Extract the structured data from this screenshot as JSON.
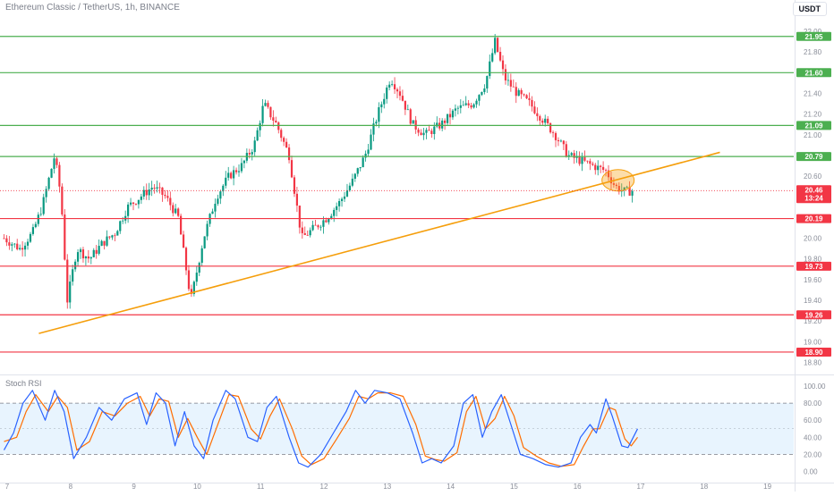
{
  "header": {
    "symbol_title": "Ethereum Classic / TetherUS, 1h, BINANCE",
    "currency_button": "USDT"
  },
  "indicator": {
    "title": "Stoch RSI",
    "ticks": [
      "100.00",
      "80.00",
      "60.00",
      "40.00",
      "20.00",
      "0.00"
    ]
  },
  "chart_data": {
    "type": "candlestick",
    "price_axis": {
      "ticks": [
        "22.00",
        "21.80",
        "21.60",
        "21.40",
        "21.20",
        "21.00",
        "20.80",
        "20.60",
        "20.40",
        "20.20",
        "20.00",
        "19.80",
        "19.60",
        "19.40",
        "19.20",
        "19.00",
        "18.80"
      ],
      "range": [
        18.77,
        22.03
      ]
    },
    "time_axis": {
      "ticks": [
        "7",
        "8",
        "9",
        "10",
        "11",
        "12",
        "13",
        "14",
        "15",
        "16",
        "17",
        "18",
        "19"
      ]
    },
    "support_resistance_levels": {
      "resistance": [
        21.95,
        21.6,
        21.09,
        20.79
      ],
      "support": [
        20.19,
        19.73,
        19.26,
        18.9
      ],
      "resistance_labels": [
        "21.95",
        "21.60",
        "21.09",
        "20.79"
      ],
      "support_labels": [
        "20.19",
        "19.73",
        "19.26",
        "18.90"
      ],
      "resistance_color": "#4caf50",
      "support_color": "#f23645"
    },
    "last_price": {
      "label": "20.46",
      "value": 20.46,
      "countdown": "13:24",
      "color": "#f23645"
    },
    "trendline": {
      "color": "#f59e0b",
      "points": [
        {
          "x": "7.5",
          "price": 19.08
        },
        {
          "x": "18.25",
          "price": 20.83
        }
      ]
    },
    "highlight_ellipse": {
      "x": "16.6",
      "price": 20.56,
      "color": "#f59e0b"
    },
    "candles_close_path": [
      {
        "t": 6.95,
        "p": 20.0
      },
      {
        "t": 7.2,
        "p": 19.9
      },
      {
        "t": 7.4,
        "p": 20.05
      },
      {
        "t": 7.55,
        "p": 20.3
      },
      {
        "t": 7.75,
        "p": 20.8
      },
      {
        "t": 7.85,
        "p": 20.4
      },
      {
        "t": 7.95,
        "p": 19.4
      },
      {
        "t": 8.1,
        "p": 19.9
      },
      {
        "t": 8.3,
        "p": 19.8
      },
      {
        "t": 8.5,
        "p": 19.95
      },
      {
        "t": 8.7,
        "p": 20.05
      },
      {
        "t": 8.9,
        "p": 20.3
      },
      {
        "t": 9.1,
        "p": 20.4
      },
      {
        "t": 9.3,
        "p": 20.5
      },
      {
        "t": 9.5,
        "p": 20.4
      },
      {
        "t": 9.7,
        "p": 20.2
      },
      {
        "t": 9.9,
        "p": 19.4
      },
      {
        "t": 10.1,
        "p": 20.0
      },
      {
        "t": 10.3,
        "p": 20.4
      },
      {
        "t": 10.5,
        "p": 20.6
      },
      {
        "t": 10.7,
        "p": 20.7
      },
      {
        "t": 10.9,
        "p": 20.9
      },
      {
        "t": 11.05,
        "p": 21.3
      },
      {
        "t": 11.25,
        "p": 21.1
      },
      {
        "t": 11.45,
        "p": 20.8
      },
      {
        "t": 11.65,
        "p": 20.0
      },
      {
        "t": 11.85,
        "p": 20.1
      },
      {
        "t": 12.05,
        "p": 20.2
      },
      {
        "t": 12.25,
        "p": 20.35
      },
      {
        "t": 12.45,
        "p": 20.55
      },
      {
        "t": 12.65,
        "p": 20.8
      },
      {
        "t": 12.85,
        "p": 21.2
      },
      {
        "t": 13.05,
        "p": 21.55
      },
      {
        "t": 13.2,
        "p": 21.4
      },
      {
        "t": 13.4,
        "p": 21.1
      },
      {
        "t": 13.6,
        "p": 21.0
      },
      {
        "t": 13.85,
        "p": 21.1
      },
      {
        "t": 14.1,
        "p": 21.25
      },
      {
        "t": 14.35,
        "p": 21.3
      },
      {
        "t": 14.55,
        "p": 21.5
      },
      {
        "t": 14.7,
        "p": 21.9
      },
      {
        "t": 14.85,
        "p": 21.55
      },
      {
        "t": 15.05,
        "p": 21.4
      },
      {
        "t": 15.25,
        "p": 21.3
      },
      {
        "t": 15.45,
        "p": 21.15
      },
      {
        "t": 15.65,
        "p": 21.0
      },
      {
        "t": 15.85,
        "p": 20.8
      },
      {
        "t": 16.05,
        "p": 20.75
      },
      {
        "t": 16.25,
        "p": 20.7
      },
      {
        "t": 16.45,
        "p": 20.65
      },
      {
        "t": 16.6,
        "p": 20.5
      },
      {
        "t": 16.75,
        "p": 20.45
      },
      {
        "t": 16.9,
        "p": 20.46
      }
    ],
    "stoch_rsi": {
      "k_color": "#2962ff",
      "d_color": "#ff6d00",
      "band_upper": 80,
      "band_lower": 20,
      "k_values": [
        {
          "t": 6.95,
          "v": 25
        },
        {
          "t": 7.1,
          "v": 45
        },
        {
          "t": 7.25,
          "v": 80
        },
        {
          "t": 7.4,
          "v": 95
        },
        {
          "t": 7.6,
          "v": 60
        },
        {
          "t": 7.75,
          "v": 95
        },
        {
          "t": 7.9,
          "v": 70
        },
        {
          "t": 8.05,
          "v": 15
        },
        {
          "t": 8.25,
          "v": 40
        },
        {
          "t": 8.45,
          "v": 75
        },
        {
          "t": 8.65,
          "v": 60
        },
        {
          "t": 8.85,
          "v": 85
        },
        {
          "t": 9.05,
          "v": 92
        },
        {
          "t": 9.2,
          "v": 55
        },
        {
          "t": 9.35,
          "v": 92
        },
        {
          "t": 9.5,
          "v": 80
        },
        {
          "t": 9.65,
          "v": 30
        },
        {
          "t": 9.8,
          "v": 70
        },
        {
          "t": 9.95,
          "v": 30
        },
        {
          "t": 10.1,
          "v": 15
        },
        {
          "t": 10.25,
          "v": 60
        },
        {
          "t": 10.45,
          "v": 95
        },
        {
          "t": 10.6,
          "v": 85
        },
        {
          "t": 10.8,
          "v": 40
        },
        {
          "t": 10.95,
          "v": 35
        },
        {
          "t": 11.1,
          "v": 75
        },
        {
          "t": 11.25,
          "v": 88
        },
        {
          "t": 11.45,
          "v": 40
        },
        {
          "t": 11.6,
          "v": 10
        },
        {
          "t": 11.75,
          "v": 5
        },
        {
          "t": 11.95,
          "v": 20
        },
        {
          "t": 12.15,
          "v": 45
        },
        {
          "t": 12.35,
          "v": 70
        },
        {
          "t": 12.5,
          "v": 95
        },
        {
          "t": 12.65,
          "v": 80
        },
        {
          "t": 12.8,
          "v": 95
        },
        {
          "t": 13.0,
          "v": 92
        },
        {
          "t": 13.2,
          "v": 85
        },
        {
          "t": 13.4,
          "v": 45
        },
        {
          "t": 13.55,
          "v": 10
        },
        {
          "t": 13.7,
          "v": 15
        },
        {
          "t": 13.85,
          "v": 10
        },
        {
          "t": 14.05,
          "v": 30
        },
        {
          "t": 14.2,
          "v": 80
        },
        {
          "t": 14.35,
          "v": 90
        },
        {
          "t": 14.5,
          "v": 40
        },
        {
          "t": 14.65,
          "v": 70
        },
        {
          "t": 14.8,
          "v": 90
        },
        {
          "t": 14.95,
          "v": 55
        },
        {
          "t": 15.1,
          "v": 20
        },
        {
          "t": 15.3,
          "v": 15
        },
        {
          "t": 15.5,
          "v": 8
        },
        {
          "t": 15.7,
          "v": 5
        },
        {
          "t": 15.9,
          "v": 10
        },
        {
          "t": 16.05,
          "v": 40
        },
        {
          "t": 16.2,
          "v": 55
        },
        {
          "t": 16.3,
          "v": 45
        },
        {
          "t": 16.45,
          "v": 85
        },
        {
          "t": 16.55,
          "v": 65
        },
        {
          "t": 16.7,
          "v": 30
        },
        {
          "t": 16.8,
          "v": 28
        },
        {
          "t": 16.95,
          "v": 50
        }
      ],
      "d_values": [
        {
          "t": 6.95,
          "v": 35
        },
        {
          "t": 7.15,
          "v": 40
        },
        {
          "t": 7.3,
          "v": 70
        },
        {
          "t": 7.45,
          "v": 90
        },
        {
          "t": 7.65,
          "v": 70
        },
        {
          "t": 7.8,
          "v": 88
        },
        {
          "t": 7.95,
          "v": 75
        },
        {
          "t": 8.1,
          "v": 25
        },
        {
          "t": 8.3,
          "v": 35
        },
        {
          "t": 8.5,
          "v": 70
        },
        {
          "t": 8.7,
          "v": 65
        },
        {
          "t": 8.9,
          "v": 80
        },
        {
          "t": 9.1,
          "v": 88
        },
        {
          "t": 9.25,
          "v": 65
        },
        {
          "t": 9.4,
          "v": 85
        },
        {
          "t": 9.55,
          "v": 82
        },
        {
          "t": 9.7,
          "v": 40
        },
        {
          "t": 9.85,
          "v": 62
        },
        {
          "t": 10.0,
          "v": 40
        },
        {
          "t": 10.15,
          "v": 20
        },
        {
          "t": 10.3,
          "v": 50
        },
        {
          "t": 10.5,
          "v": 90
        },
        {
          "t": 10.65,
          "v": 88
        },
        {
          "t": 10.85,
          "v": 50
        },
        {
          "t": 11.0,
          "v": 38
        },
        {
          "t": 11.15,
          "v": 65
        },
        {
          "t": 11.3,
          "v": 85
        },
        {
          "t": 11.5,
          "v": 50
        },
        {
          "t": 11.65,
          "v": 18
        },
        {
          "t": 11.8,
          "v": 8
        },
        {
          "t": 12.0,
          "v": 15
        },
        {
          "t": 12.2,
          "v": 38
        },
        {
          "t": 12.4,
          "v": 62
        },
        {
          "t": 12.55,
          "v": 88
        },
        {
          "t": 12.7,
          "v": 85
        },
        {
          "t": 12.85,
          "v": 92
        },
        {
          "t": 13.05,
          "v": 92
        },
        {
          "t": 13.25,
          "v": 88
        },
        {
          "t": 13.45,
          "v": 55
        },
        {
          "t": 13.6,
          "v": 18
        },
        {
          "t": 13.75,
          "v": 14
        },
        {
          "t": 13.9,
          "v": 12
        },
        {
          "t": 14.1,
          "v": 22
        },
        {
          "t": 14.25,
          "v": 70
        },
        {
          "t": 14.4,
          "v": 88
        },
        {
          "t": 14.55,
          "v": 50
        },
        {
          "t": 14.7,
          "v": 62
        },
        {
          "t": 14.85,
          "v": 88
        },
        {
          "t": 15.0,
          "v": 65
        },
        {
          "t": 15.15,
          "v": 28
        },
        {
          "t": 15.35,
          "v": 18
        },
        {
          "t": 15.55,
          "v": 10
        },
        {
          "t": 15.75,
          "v": 6
        },
        {
          "t": 15.95,
          "v": 8
        },
        {
          "t": 16.1,
          "v": 30
        },
        {
          "t": 16.25,
          "v": 50
        },
        {
          "t": 16.35,
          "v": 50
        },
        {
          "t": 16.5,
          "v": 75
        },
        {
          "t": 16.6,
          "v": 72
        },
        {
          "t": 16.75,
          "v": 38
        },
        {
          "t": 16.85,
          "v": 30
        },
        {
          "t": 16.95,
          "v": 40
        }
      ]
    }
  }
}
